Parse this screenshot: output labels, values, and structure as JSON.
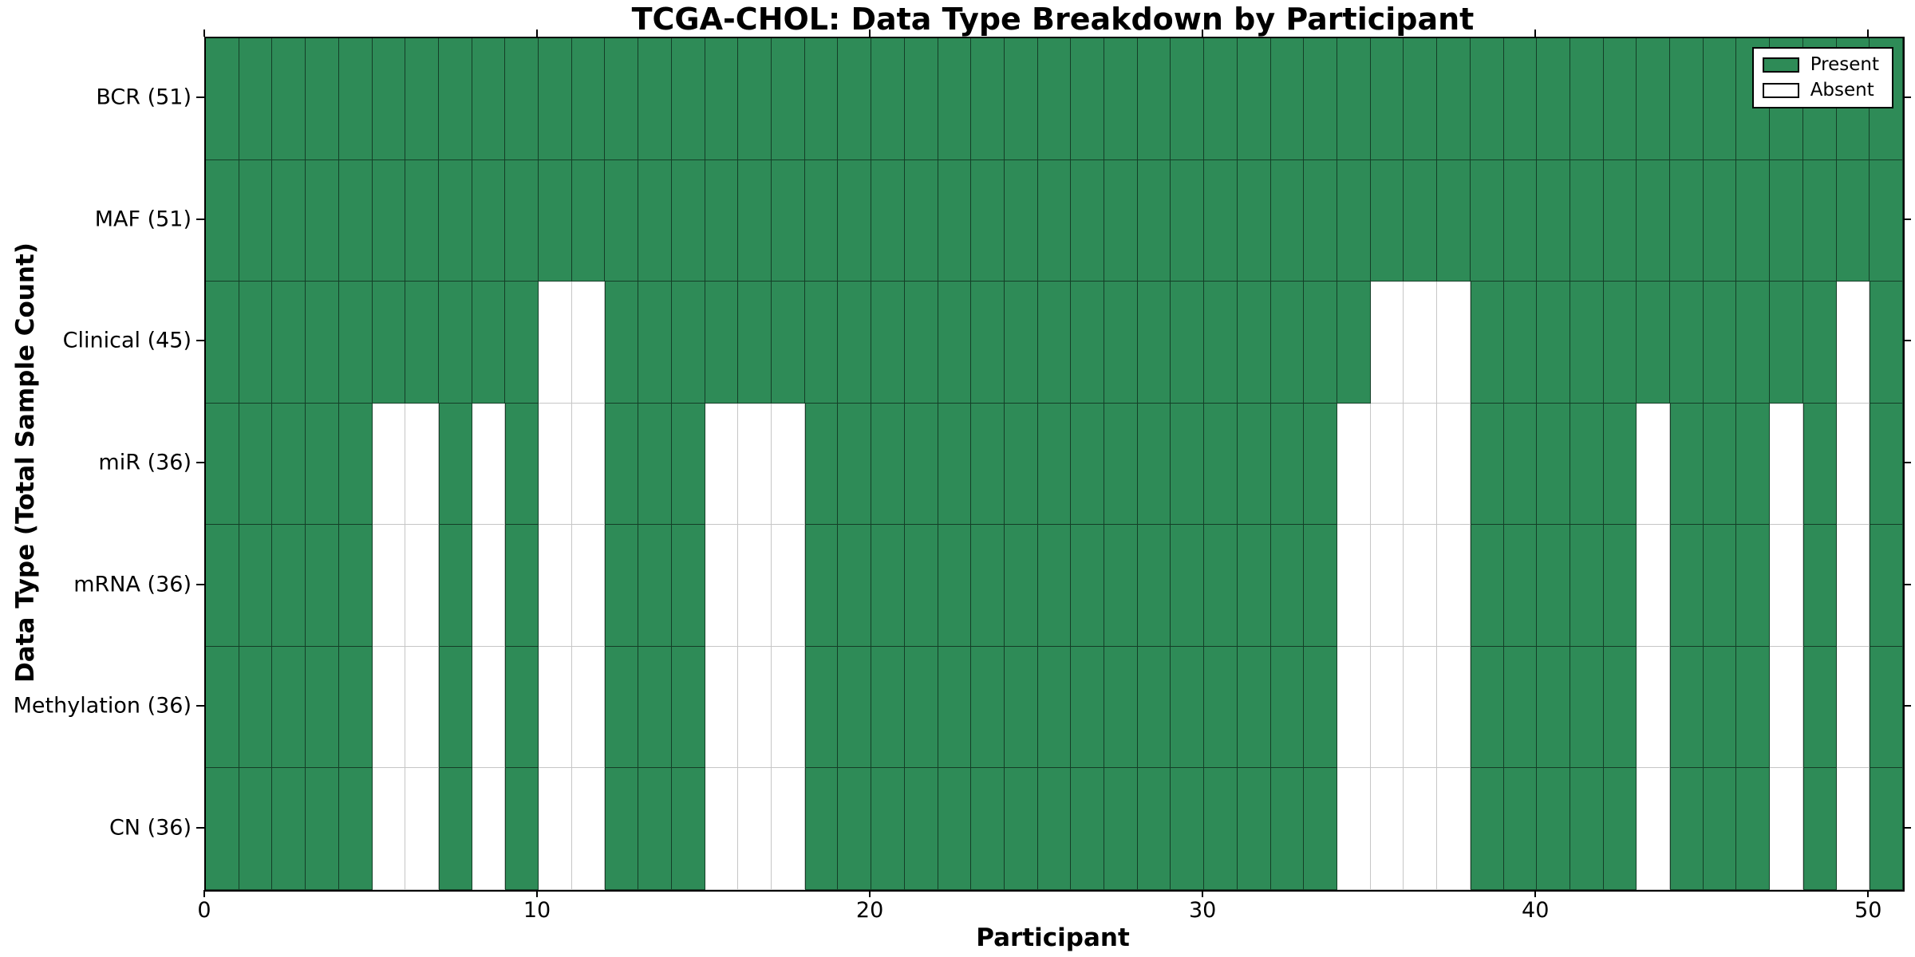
{
  "colors": {
    "present": "#2e8b57",
    "absent": "#ffffff",
    "axis": "#000000"
  },
  "chart_data": {
    "type": "heatmap",
    "title": "TCGA-CHOL: Data Type Breakdown by Participant",
    "xlabel": "Participant",
    "ylabel": "Data Type (Total Sample Count)",
    "x_range": [
      0,
      51
    ],
    "n_participants": 51,
    "x_ticks": [
      "0",
      "10",
      "20",
      "30",
      "40",
      "50"
    ],
    "x_tick_values": [
      0,
      10,
      20,
      30,
      40,
      50
    ],
    "grid": false,
    "legend_position": "upper right",
    "legend": [
      {
        "label": "Present",
        "color": "#2e8b57"
      },
      {
        "label": "Absent",
        "color": "#ffffff"
      }
    ],
    "rows": [
      {
        "label": "BCR (51)",
        "data_type": "BCR",
        "present_count": 51,
        "absent_participants": []
      },
      {
        "label": "MAF (51)",
        "data_type": "MAF",
        "present_count": 51,
        "absent_participants": []
      },
      {
        "label": "Clinical (45)",
        "data_type": "Clinical",
        "present_count": 45,
        "absent_participants": [
          10,
          11,
          35,
          36,
          37,
          49
        ]
      },
      {
        "label": "miR (36)",
        "data_type": "miR",
        "present_count": 36,
        "absent_participants": [
          5,
          6,
          8,
          10,
          11,
          15,
          16,
          17,
          34,
          35,
          36,
          37,
          43,
          47,
          49
        ]
      },
      {
        "label": "mRNA (36)",
        "data_type": "mRNA",
        "present_count": 36,
        "absent_participants": [
          5,
          6,
          8,
          10,
          11,
          15,
          16,
          17,
          34,
          35,
          36,
          37,
          43,
          47,
          49
        ]
      },
      {
        "label": "Methylation (36)",
        "data_type": "Methylation",
        "present_count": 36,
        "absent_participants": [
          5,
          6,
          8,
          10,
          11,
          15,
          16,
          17,
          34,
          35,
          36,
          37,
          43,
          47,
          49
        ]
      },
      {
        "label": "CN (36)",
        "data_type": "CN",
        "present_count": 36,
        "absent_participants": [
          5,
          6,
          8,
          10,
          11,
          15,
          16,
          17,
          34,
          35,
          36,
          37,
          43,
          47,
          49
        ]
      }
    ]
  }
}
